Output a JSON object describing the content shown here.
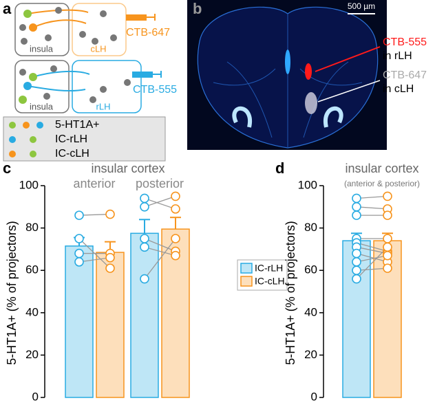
{
  "panel_labels": [
    "a",
    "b",
    "c",
    "d"
  ],
  "panel_a": {
    "row1": {
      "source": "insula",
      "target": "cLH",
      "tracer": "CTB-647"
    },
    "row2": {
      "source": "insula",
      "target": "rLH",
      "tracer": "CTB-555"
    },
    "legend": [
      "5-HT1A+",
      "IC-rLH",
      "IC-cLH"
    ]
  },
  "panel_b": {
    "scale_bar": "500 µm",
    "annotations": [
      {
        "tracer": "CTB-555",
        "target": "in rLH"
      },
      {
        "tracer": "CTB-647",
        "target": "in cLH"
      }
    ]
  },
  "chart_data": [
    {
      "type": "bar",
      "title": "insular cortex",
      "categories": [
        "anterior",
        "posterior"
      ],
      "ylabel": "5-HT1A+ (% of projectors)",
      "ylim": [
        0,
        100
      ],
      "yticks": [
        0,
        20,
        40,
        60,
        80,
        100
      ],
      "legend": "right",
      "series": [
        {
          "name": "IC-rLH",
          "color": "#29abe2",
          "values": [
            71.5,
            77.5
          ],
          "errors": [
            4,
            6.5
          ],
          "points": [
            [
              86,
              75,
              68,
              64
            ],
            [
              94,
              90,
              75,
              71,
              56
            ]
          ]
        },
        {
          "name": "IC-cLH",
          "color": "#f7941d",
          "values": [
            68.5,
            79.5
          ],
          "errors": [
            5,
            5.5
          ],
          "points": [
            [
              86.5,
              61,
              68,
              66
            ],
            [
              89,
              95,
              69,
              67,
              75
            ]
          ]
        }
      ]
    },
    {
      "type": "bar",
      "title": "insular cortex",
      "subtitle": "(anterior & posterior)",
      "categories": [
        null
      ],
      "ylabel": "5-HT1A+ (% of projectors)",
      "ylim": [
        0,
        100
      ],
      "yticks": [
        0,
        20,
        40,
        60,
        80,
        100
      ],
      "series": [
        {
          "name": "IC-rLH",
          "color": "#29abe2",
          "values": [
            74
          ],
          "errors": [
            3.5
          ],
          "points": [
            [
              94,
              90,
              86,
              75,
              73,
              71,
              68,
              64,
              60,
              56
            ]
          ]
        },
        {
          "name": "IC-cLH",
          "color": "#f7941d",
          "values": [
            74
          ],
          "errors": [
            3.5
          ],
          "points": [
            [
              95,
              89,
              86,
              75,
              69,
              68,
              64,
              67,
              61,
              71
            ]
          ]
        }
      ]
    }
  ]
}
